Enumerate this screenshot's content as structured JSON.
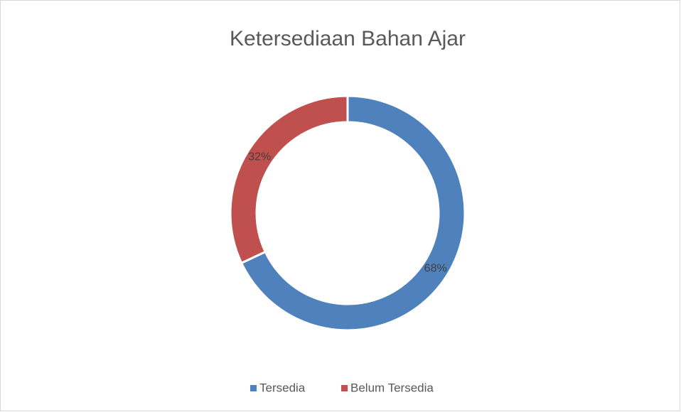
{
  "chart_data": {
    "type": "doughnut",
    "title": "Ketersediaan Bahan Ajar",
    "categories": [
      "Tersedia",
      "Belum Tersedia"
    ],
    "values": [
      68,
      32
    ],
    "value_labels": [
      "68%",
      "32%"
    ],
    "colors": [
      "#4f81bd",
      "#c0504d"
    ],
    "legend": "bottom"
  }
}
